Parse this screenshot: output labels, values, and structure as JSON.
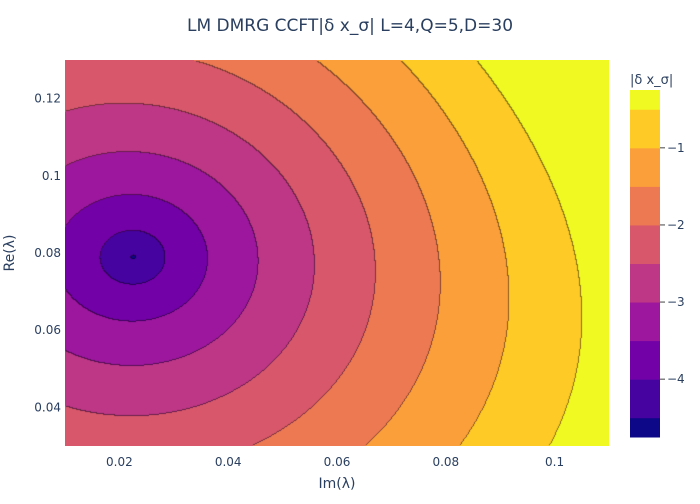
{
  "chart_data": {
    "type": "contour",
    "title": "LM DMRG CCFT|δ x_σ| L=4,Q=5,D=30",
    "xlabel": "Im(λ)",
    "ylabel": "Re(λ)",
    "xlim": [
      0.01,
      0.11
    ],
    "ylim": [
      0.03,
      0.13
    ],
    "x_ticks": [
      0.02,
      0.04,
      0.06,
      0.08,
      0.1
    ],
    "x_tick_labels": [
      "0.02",
      "0.04",
      "0.06",
      "0.08",
      "0.1"
    ],
    "y_ticks": [
      0.04,
      0.06,
      0.08,
      0.1,
      0.12
    ],
    "y_tick_labels": [
      "0.04",
      "0.06",
      "0.08",
      "0.1",
      "0.12"
    ],
    "colorbar": {
      "title": "|δ x_σ|",
      "range": [
        -4.75,
        -0.25
      ],
      "ticks": [
        -4,
        -3,
        -2,
        -1
      ],
      "tick_labels": [
        "−4",
        "−3",
        "−2",
        "−1"
      ],
      "levels": [
        {
          "from": -4.75,
          "to": -4.5,
          "color": "#0d0887"
        },
        {
          "from": -4.5,
          "to": -4.0,
          "color": "#46039f"
        },
        {
          "from": -4.0,
          "to": -3.5,
          "color": "#7201a8"
        },
        {
          "from": -3.5,
          "to": -3.0,
          "color": "#9c179e"
        },
        {
          "from": -3.0,
          "to": -2.5,
          "color": "#bd3786"
        },
        {
          "from": -2.5,
          "to": -2.0,
          "color": "#d8576b"
        },
        {
          "from": -2.0,
          "to": -1.5,
          "color": "#ed7953"
        },
        {
          "from": -1.5,
          "to": -1.0,
          "color": "#fb9f3a"
        },
        {
          "from": -1.0,
          "to": -0.5,
          "color": "#fdca26"
        },
        {
          "from": -0.5,
          "to": -0.25,
          "color": "#f0f921"
        }
      ]
    },
    "minimum": {
      "x": 0.0225,
      "y": 0.079
    }
  }
}
